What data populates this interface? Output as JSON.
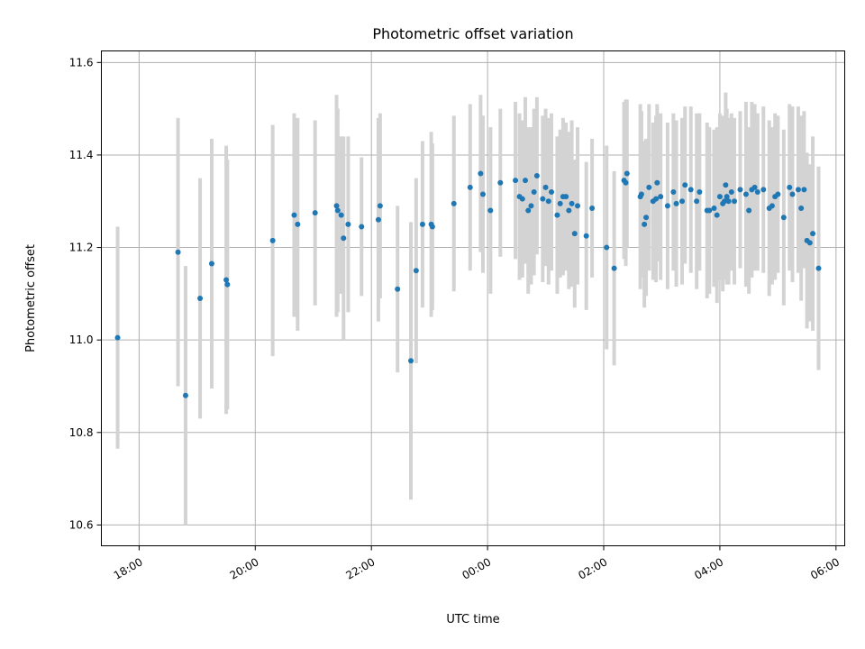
{
  "chart_data": {
    "type": "scatter",
    "title": "Photometric offset variation",
    "xlabel": "UTC time",
    "ylabel": "Photometric offset",
    "x_unit": "hours (UTC, continuing past midnight)",
    "xlim": [
      17.35,
      30.15
    ],
    "ylim": [
      10.555,
      11.625
    ],
    "xticks": [
      18,
      20,
      22,
      24,
      26,
      28,
      30
    ],
    "xtick_labels": [
      "18:00",
      "20:00",
      "22:00",
      "00:00",
      "02:00",
      "04:00",
      "06:00"
    ],
    "yticks": [
      10.6,
      10.8,
      11.0,
      11.2,
      11.4,
      11.6
    ],
    "ytick_labels": [
      "10.6",
      "10.8",
      "11.0",
      "11.2",
      "11.4",
      "11.6"
    ],
    "grid": true,
    "colors": {
      "marker": "#1f77b4",
      "errorbar": "#d3d3d3",
      "grid": "#b0b0b0"
    },
    "points": [
      [
        17.63,
        11.005,
        0.24
      ],
      [
        18.67,
        11.19,
        0.29
      ],
      [
        18.8,
        10.88,
        0.28
      ],
      [
        19.05,
        11.09,
        0.26
      ],
      [
        19.25,
        11.165,
        0.27
      ],
      [
        19.5,
        11.13,
        0.29
      ],
      [
        19.52,
        11.12,
        0.27
      ],
      [
        20.3,
        11.215,
        0.25
      ],
      [
        20.67,
        11.27,
        0.22
      ],
      [
        20.73,
        11.25,
        0.23
      ],
      [
        21.03,
        11.275,
        0.2
      ],
      [
        21.4,
        11.29,
        0.24
      ],
      [
        21.42,
        11.28,
        0.22
      ],
      [
        21.48,
        11.27,
        0.17
      ],
      [
        21.52,
        11.22,
        0.22
      ],
      [
        21.6,
        11.25,
        0.19
      ],
      [
        21.83,
        11.245,
        0.15
      ],
      [
        22.12,
        11.26,
        0.22
      ],
      [
        22.15,
        11.29,
        0.2
      ],
      [
        22.45,
        11.11,
        0.18
      ],
      [
        22.68,
        10.955,
        0.3
      ],
      [
        22.77,
        11.15,
        0.2
      ],
      [
        22.88,
        11.25,
        0.18
      ],
      [
        23.03,
        11.25,
        0.2
      ],
      [
        23.05,
        11.245,
        0.18
      ],
      [
        23.42,
        11.295,
        0.19
      ],
      [
        23.7,
        11.33,
        0.18
      ],
      [
        23.88,
        11.36,
        0.17
      ],
      [
        23.92,
        11.315,
        0.17
      ],
      [
        24.05,
        11.28,
        0.18
      ],
      [
        24.22,
        11.34,
        0.16
      ],
      [
        24.48,
        11.345,
        0.17
      ],
      [
        24.55,
        11.31,
        0.18
      ],
      [
        24.6,
        11.305,
        0.17
      ],
      [
        24.65,
        11.345,
        0.18
      ],
      [
        24.7,
        11.28,
        0.18
      ],
      [
        24.75,
        11.29,
        0.17
      ],
      [
        24.8,
        11.32,
        0.18
      ],
      [
        24.85,
        11.355,
        0.17
      ],
      [
        24.95,
        11.305,
        0.18
      ],
      [
        25.0,
        11.33,
        0.17
      ],
      [
        25.05,
        11.3,
        0.18
      ],
      [
        25.1,
        11.32,
        0.17
      ],
      [
        25.2,
        11.27,
        0.17
      ],
      [
        25.25,
        11.295,
        0.16
      ],
      [
        25.3,
        11.31,
        0.17
      ],
      [
        25.35,
        11.31,
        0.16
      ],
      [
        25.4,
        11.28,
        0.17
      ],
      [
        25.45,
        11.295,
        0.18
      ],
      [
        25.5,
        11.23,
        0.16
      ],
      [
        25.55,
        11.29,
        0.17
      ],
      [
        25.7,
        11.225,
        0.16
      ],
      [
        25.8,
        11.285,
        0.15
      ],
      [
        26.05,
        11.2,
        0.22
      ],
      [
        26.18,
        11.155,
        0.21
      ],
      [
        26.35,
        11.345,
        0.17
      ],
      [
        26.38,
        11.34,
        0.18
      ],
      [
        26.4,
        11.36,
        0.16
      ],
      [
        26.63,
        11.31,
        0.2
      ],
      [
        26.65,
        11.315,
        0.18
      ],
      [
        26.7,
        11.25,
        0.18
      ],
      [
        26.73,
        11.265,
        0.17
      ],
      [
        26.78,
        11.33,
        0.18
      ],
      [
        26.85,
        11.3,
        0.17
      ],
      [
        26.9,
        11.305,
        0.18
      ],
      [
        26.92,
        11.34,
        0.17
      ],
      [
        26.98,
        11.31,
        0.18
      ],
      [
        27.1,
        11.29,
        0.18
      ],
      [
        27.2,
        11.32,
        0.17
      ],
      [
        27.25,
        11.295,
        0.18
      ],
      [
        27.35,
        11.3,
        0.18
      ],
      [
        27.4,
        11.335,
        0.17
      ],
      [
        27.5,
        11.325,
        0.18
      ],
      [
        27.6,
        11.3,
        0.19
      ],
      [
        27.65,
        11.32,
        0.17
      ],
      [
        27.78,
        11.28,
        0.19
      ],
      [
        27.82,
        11.28,
        0.18
      ],
      [
        27.9,
        11.285,
        0.17
      ],
      [
        27.95,
        11.27,
        0.19
      ],
      [
        28.0,
        11.31,
        0.18
      ],
      [
        28.05,
        11.295,
        0.19
      ],
      [
        28.08,
        11.3,
        0.17
      ],
      [
        28.1,
        11.335,
        0.2
      ],
      [
        28.12,
        11.31,
        0.19
      ],
      [
        28.15,
        11.3,
        0.18
      ],
      [
        28.2,
        11.32,
        0.17
      ],
      [
        28.25,
        11.3,
        0.18
      ],
      [
        28.35,
        11.325,
        0.17
      ],
      [
        28.45,
        11.315,
        0.2
      ],
      [
        28.5,
        11.28,
        0.18
      ],
      [
        28.55,
        11.325,
        0.19
      ],
      [
        28.6,
        11.33,
        0.18
      ],
      [
        28.65,
        11.32,
        0.17
      ],
      [
        28.75,
        11.325,
        0.18
      ],
      [
        28.85,
        11.285,
        0.19
      ],
      [
        28.9,
        11.29,
        0.17
      ],
      [
        28.95,
        11.31,
        0.18
      ],
      [
        29.0,
        11.315,
        0.17
      ],
      [
        29.1,
        11.265,
        0.19
      ],
      [
        29.2,
        11.33,
        0.18
      ],
      [
        29.25,
        11.315,
        0.19
      ],
      [
        29.35,
        11.325,
        0.18
      ],
      [
        29.4,
        11.285,
        0.2
      ],
      [
        29.45,
        11.325,
        0.17
      ],
      [
        29.5,
        11.215,
        0.19
      ],
      [
        29.55,
        11.21,
        0.17
      ],
      [
        29.6,
        11.23,
        0.21
      ],
      [
        29.7,
        11.155,
        0.22
      ]
    ]
  }
}
